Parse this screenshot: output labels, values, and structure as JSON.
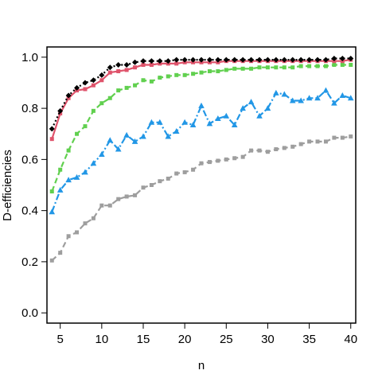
{
  "chart_data": {
    "type": "line",
    "title": "",
    "xlabel": "n",
    "ylabel": "D-efficiencies",
    "xlim": [
      3.4,
      40.6
    ],
    "ylim": [
      -0.04,
      1.04
    ],
    "x_ticks": [
      5,
      10,
      15,
      20,
      25,
      30,
      35,
      40
    ],
    "x_tick_labels": [
      "5",
      "10",
      "15",
      "20",
      "25",
      "30",
      "35",
      "40"
    ],
    "y_ticks": [
      0.0,
      0.2,
      0.4,
      0.6,
      0.8,
      1.0
    ],
    "y_tick_labels": [
      "0.0",
      "0.2",
      "0.4",
      "0.6",
      "0.8",
      "1.0"
    ],
    "grid": false,
    "legend": "none",
    "x": [
      4,
      5,
      6,
      7,
      8,
      9,
      10,
      11,
      12,
      13,
      14,
      15,
      16,
      17,
      18,
      19,
      20,
      21,
      22,
      23,
      24,
      25,
      26,
      27,
      28,
      29,
      30,
      31,
      32,
      33,
      34,
      35,
      36,
      37,
      38,
      39,
      40
    ],
    "series": [
      {
        "color": "#000000",
        "line": "dotted",
        "marker": "diamond",
        "values": [
          0.72,
          0.79,
          0.85,
          0.88,
          0.9,
          0.91,
          0.93,
          0.96,
          0.97,
          0.97,
          0.98,
          0.985,
          0.985,
          0.985,
          0.985,
          0.99,
          0.99,
          0.99,
          0.99,
          0.99,
          0.99,
          0.99,
          0.99,
          0.99,
          0.99,
          0.99,
          0.99,
          0.99,
          0.99,
          0.99,
          0.99,
          0.99,
          0.99,
          0.99,
          0.995,
          0.995,
          0.995
        ]
      },
      {
        "color": "#DF536B",
        "line": "solid",
        "marker": "square",
        "values": [
          0.68,
          0.78,
          0.84,
          0.87,
          0.875,
          0.89,
          0.91,
          0.94,
          0.945,
          0.95,
          0.96,
          0.97,
          0.97,
          0.975,
          0.975,
          0.975,
          0.98,
          0.98,
          0.98,
          0.98,
          0.98,
          0.985,
          0.985,
          0.985,
          0.985,
          0.985,
          0.985,
          0.985,
          0.985,
          0.985,
          0.985,
          0.985,
          0.985,
          0.985,
          0.985,
          0.985,
          0.99
        ]
      },
      {
        "color": "#61D04F",
        "line": "dashed",
        "marker": "square",
        "values": [
          0.475,
          0.56,
          0.635,
          0.7,
          0.73,
          0.79,
          0.82,
          0.84,
          0.87,
          0.88,
          0.89,
          0.91,
          0.905,
          0.92,
          0.925,
          0.93,
          0.93,
          0.935,
          0.94,
          0.945,
          0.945,
          0.95,
          0.955,
          0.955,
          0.955,
          0.96,
          0.96,
          0.96,
          0.96,
          0.96,
          0.965,
          0.965,
          0.965,
          0.965,
          0.97,
          0.97,
          0.97
        ]
      },
      {
        "color": "#2297E6",
        "line": "dashdot",
        "marker": "triangle",
        "values": [
          0.395,
          0.48,
          0.52,
          0.53,
          0.55,
          0.585,
          0.62,
          0.675,
          0.64,
          0.695,
          0.67,
          0.69,
          0.745,
          0.745,
          0.69,
          0.71,
          0.745,
          0.735,
          0.81,
          0.74,
          0.76,
          0.77,
          0.735,
          0.8,
          0.825,
          0.77,
          0.8,
          0.86,
          0.855,
          0.83,
          0.83,
          0.84,
          0.84,
          0.87,
          0.82,
          0.85,
          0.84
        ]
      },
      {
        "color": "#9E9E9E",
        "line": "dashed",
        "marker": "square",
        "values": [
          0.205,
          0.235,
          0.3,
          0.315,
          0.35,
          0.37,
          0.42,
          0.42,
          0.445,
          0.455,
          0.46,
          0.49,
          0.5,
          0.515,
          0.525,
          0.545,
          0.55,
          0.56,
          0.585,
          0.59,
          0.595,
          0.6,
          0.605,
          0.61,
          0.635,
          0.635,
          0.63,
          0.64,
          0.645,
          0.65,
          0.66,
          0.67,
          0.67,
          0.67,
          0.685,
          0.685,
          0.69
        ]
      }
    ]
  }
}
